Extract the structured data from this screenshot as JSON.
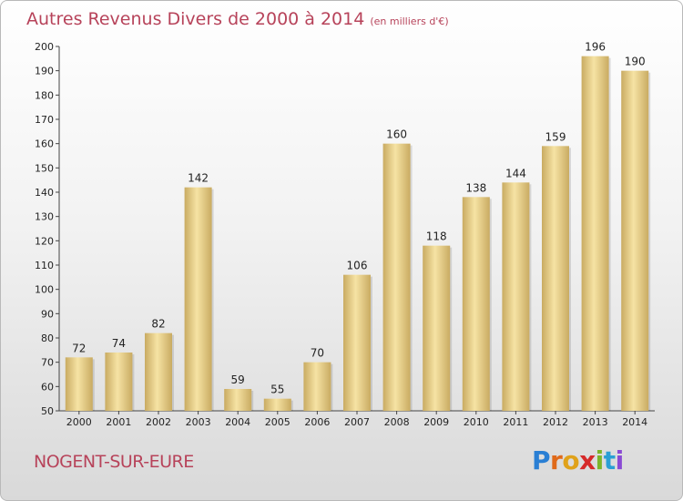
{
  "header": {
    "title": "Autres Revenus Divers de 2000 à 2014",
    "unit": "(en milliers d'€)"
  },
  "footer": {
    "place": "NOGENT-SUR-EURE",
    "brand": "Proxiti"
  },
  "colors": {
    "title": "#b7435a",
    "bar_light": "#f6e3a4",
    "bar_dark": "#c9ab62",
    "logo_letters": [
      "#2a7fd4",
      "#e06a1a",
      "#e0a21a",
      "#d62a2a",
      "#7cb52a",
      "#2a9fd4",
      "#8a4ad4"
    ]
  },
  "chart_data": {
    "type": "bar",
    "title": "Autres Revenus Divers de 2000 à 2014",
    "xlabel": "",
    "ylabel": "",
    "categories": [
      "2000",
      "2001",
      "2002",
      "2003",
      "2004",
      "2005",
      "2006",
      "2007",
      "2008",
      "2009",
      "2010",
      "2011",
      "2012",
      "2013",
      "2014"
    ],
    "values": [
      72,
      74,
      82,
      142,
      59,
      55,
      70,
      106,
      160,
      118,
      138,
      144,
      159,
      196,
      190
    ],
    "ylim": [
      50,
      200
    ],
    "yticks": [
      50,
      60,
      70,
      80,
      90,
      100,
      110,
      120,
      130,
      140,
      150,
      160,
      170,
      180,
      190,
      200
    ],
    "grid": false,
    "legend": "none"
  }
}
